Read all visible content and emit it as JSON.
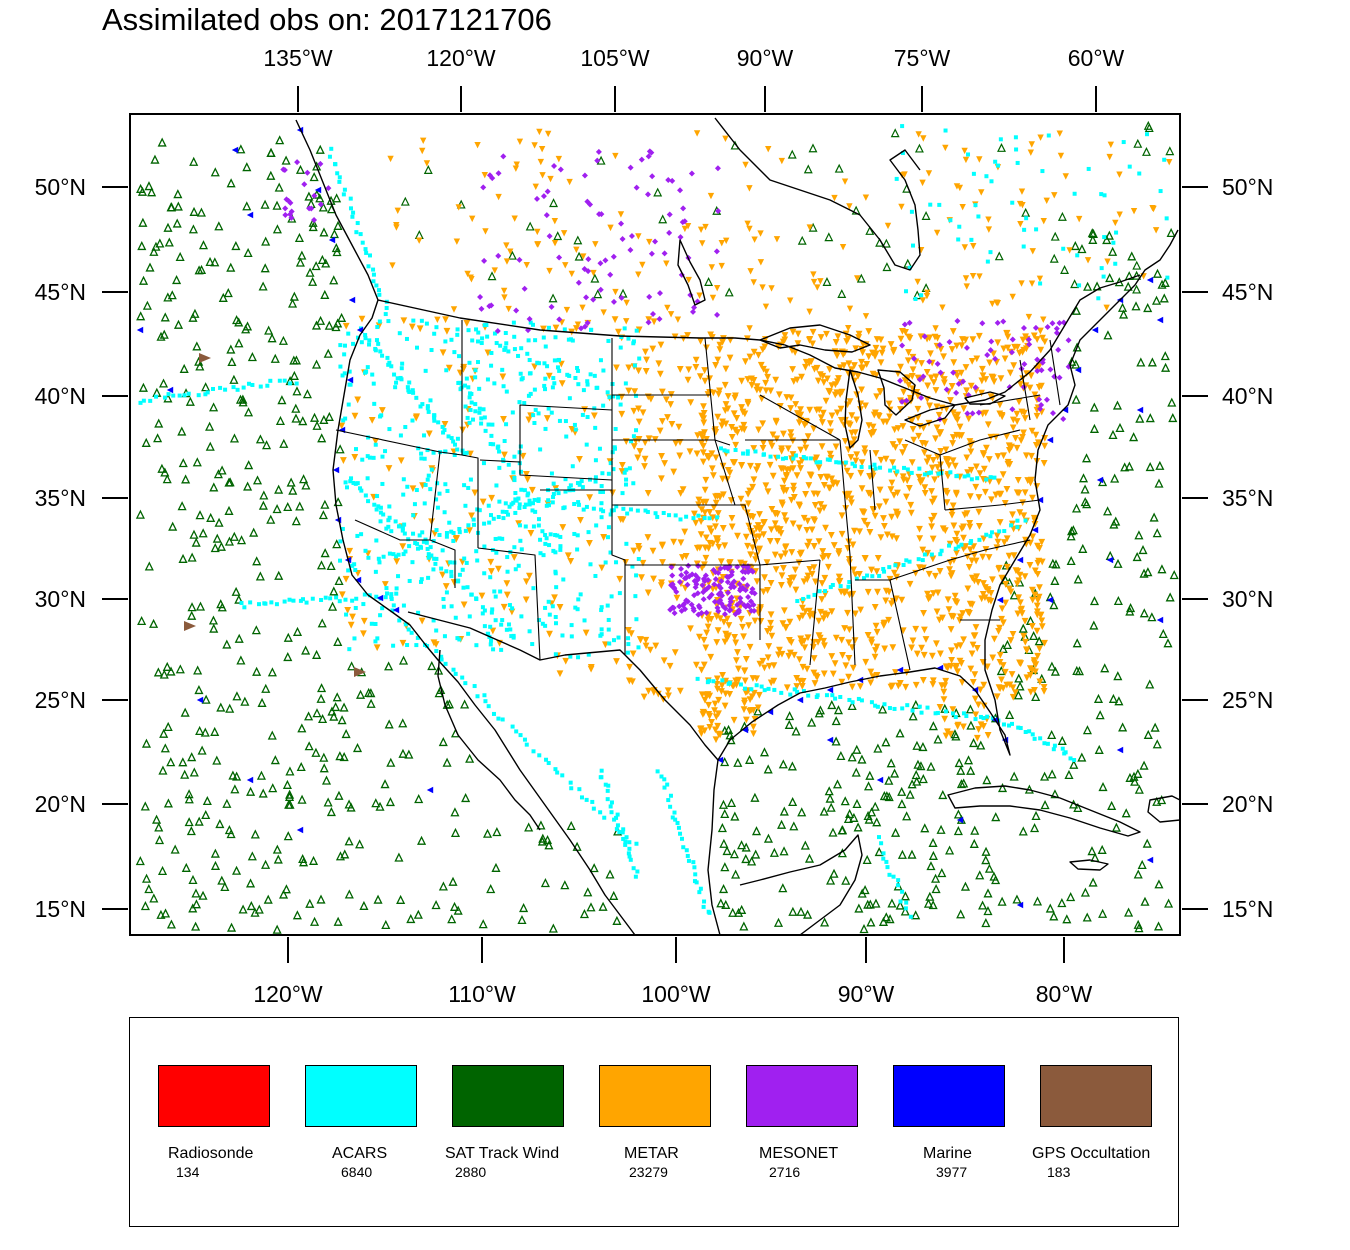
{
  "title": "Assimilated obs on: 2017121706",
  "axes": {
    "top_lon_labels": [
      "135°W",
      "120°W",
      "105°W",
      "90°W",
      "75°W",
      "60°W"
    ],
    "bottom_lon_labels": [
      "120°W",
      "110°W",
      "100°W",
      "90°W",
      "80°W"
    ],
    "lat_labels": [
      "50°N",
      "45°N",
      "40°N",
      "35°N",
      "30°N",
      "25°N",
      "20°N",
      "15°N"
    ]
  },
  "legend": [
    {
      "label": "Radiosonde",
      "count": "134",
      "color": "#ff0000"
    },
    {
      "label": "ACARS",
      "count": "6840",
      "color": "#00ffff"
    },
    {
      "label": "SAT Track Wind",
      "count": "2880",
      "color": "#006400"
    },
    {
      "label": "METAR",
      "count": "23279",
      "color": "#ffa500"
    },
    {
      "label": "MESONET",
      "count": "2716",
      "color": "#a020f0"
    },
    {
      "label": "Marine",
      "count": "3977",
      "color": "#0000ff"
    },
    {
      "label": "GPS Occultation",
      "count": "183",
      "color": "#8b5a3c"
    }
  ]
}
